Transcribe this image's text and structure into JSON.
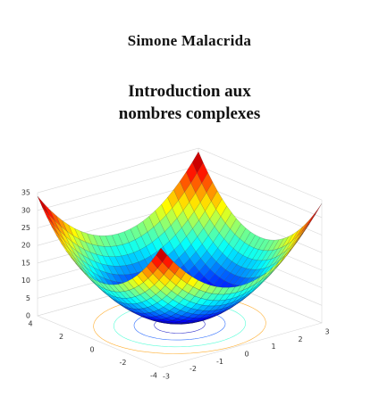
{
  "author": "Simone Malacrida",
  "title": [
    "Introduction aux",
    "nombres complexes"
  ],
  "figure": {
    "z_ticks": [
      0,
      5,
      10,
      15,
      20,
      25,
      30,
      35
    ],
    "x_ticks": [
      4,
      2,
      0,
      -2,
      -4
    ],
    "y_ticks": [
      -3,
      -2,
      -1,
      0,
      1,
      2,
      3
    ]
  }
}
